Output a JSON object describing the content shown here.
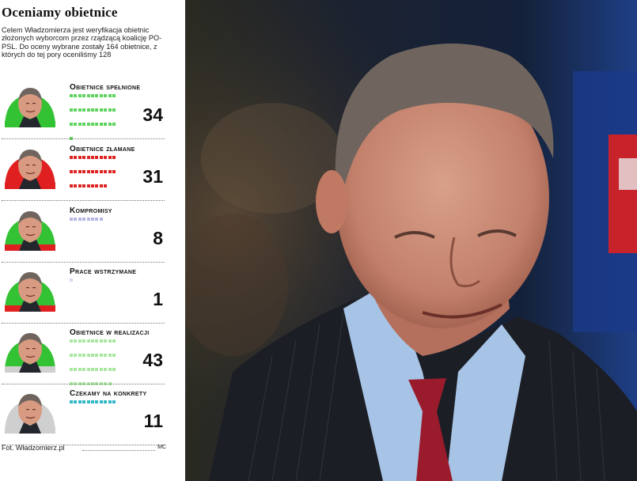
{
  "title": "Oceniamy obietnice",
  "intro": "Celem Władzomierza jest weryfikacja obietnic złożonych wyborcom przez rządzącą koalicję PO-PSL. Do oceny wybrane zostały 164 obietnice, z których do tej pory oceniliśmy 128",
  "categories": [
    {
      "label": "Obietnice spełnione",
      "value": 34,
      "color": "#5fd35f",
      "face_fill": "#33c233",
      "face_bottom": "#33c233"
    },
    {
      "label": "Obietnice złamane",
      "value": 31,
      "color": "#dd2222",
      "face_fill": "#e02020",
      "face_bottom": "#e02020"
    },
    {
      "label": "Kompromisy",
      "value": 8,
      "color": "#b6b6e6",
      "face_fill": "#33c233",
      "face_bottom": "#e02020"
    },
    {
      "label": "Prace wstrzymane",
      "value": 1,
      "color": "#d7d7ee",
      "face_fill": "#33c233",
      "face_bottom": "#e02020"
    },
    {
      "label": "Obietnice w realizacji",
      "value": 43,
      "color": "#a9e7a0",
      "face_fill": "#33c233",
      "face_bottom": "#cfcfcf"
    },
    {
      "label": "Czekamy na konkrety",
      "value": 11,
      "color": "#33b8c8",
      "face_fill": "#cfcfcf",
      "face_bottom": "#cfcfcf"
    }
  ],
  "footer": {
    "source": "Fot. Władzomierz.pl",
    "initials": "MC"
  },
  "photo": {
    "icon": "man-in-suit-photo"
  }
}
